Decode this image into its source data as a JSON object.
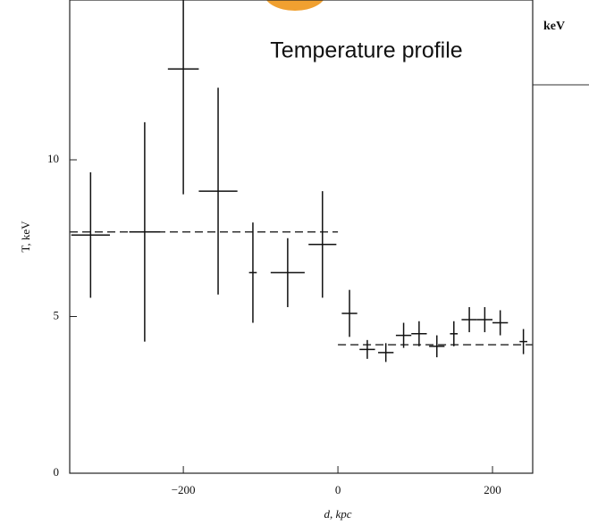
{
  "chart_data": {
    "type": "errorbar",
    "title": "Temperature profile",
    "xlabel": "d, kpc",
    "ylabel": "T, keV",
    "corner_text": "keV",
    "xlim": [
      -347,
      252
    ],
    "ylim": [
      0,
      15.1
    ],
    "xticks": [
      {
        "value": -200,
        "label": "−200"
      },
      0,
      200
    ],
    "yticks": [
      0,
      5,
      10
    ],
    "color": "#111111",
    "x": [
      -320,
      -250,
      -200,
      -155,
      -110,
      -65,
      -20,
      15,
      38,
      62,
      85,
      105,
      128,
      150,
      170,
      190,
      210,
      240
    ],
    "xerr": [
      25,
      20,
      20,
      25,
      5,
      22,
      18,
      10,
      10,
      10,
      10,
      10,
      10,
      5,
      10,
      10,
      10,
      5
    ],
    "values": [
      7.6,
      7.7,
      12.9,
      9.0,
      6.4,
      6.4,
      7.3,
      5.1,
      3.95,
      3.85,
      4.4,
      4.45,
      4.05,
      4.45,
      4.9,
      4.9,
      4.8,
      4.2
    ],
    "yerr": [
      2.0,
      3.5,
      4.0,
      3.3,
      1.6,
      1.1,
      1.7,
      0.75,
      0.3,
      0.3,
      0.4,
      0.4,
      0.35,
      0.4,
      0.4,
      0.4,
      0.4,
      0.4
    ],
    "model_lines": [
      {
        "x": [
          -347,
          0
        ],
        "values": [
          7.7,
          7.7
        ]
      },
      {
        "x": [
          0,
          252
        ],
        "values": [
          4.1,
          4.1
        ]
      }
    ]
  }
}
